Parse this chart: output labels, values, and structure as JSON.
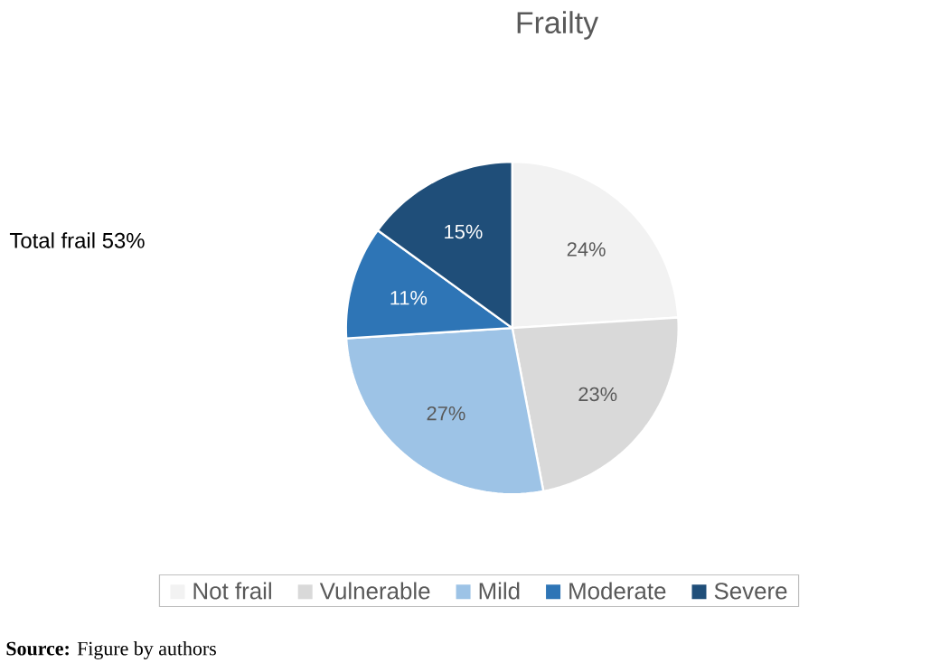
{
  "chart_data": {
    "type": "pie",
    "title": "Frailty",
    "categories": [
      "Not frail",
      "Vulnerable",
      "Mild",
      "Moderate",
      "Severe"
    ],
    "values": [
      24,
      23,
      27,
      11,
      15
    ],
    "value_labels": [
      "24%",
      "23%",
      "27%",
      "11%",
      "15%"
    ],
    "colors": [
      "#f2f2f2",
      "#d9d9d9",
      "#9dc3e6",
      "#2e75b6",
      "#1f4e79"
    ],
    "legend": "bottom",
    "annotations": [
      "Total frail 53%",
      "**Source:** Figure by authors"
    ]
  }
}
